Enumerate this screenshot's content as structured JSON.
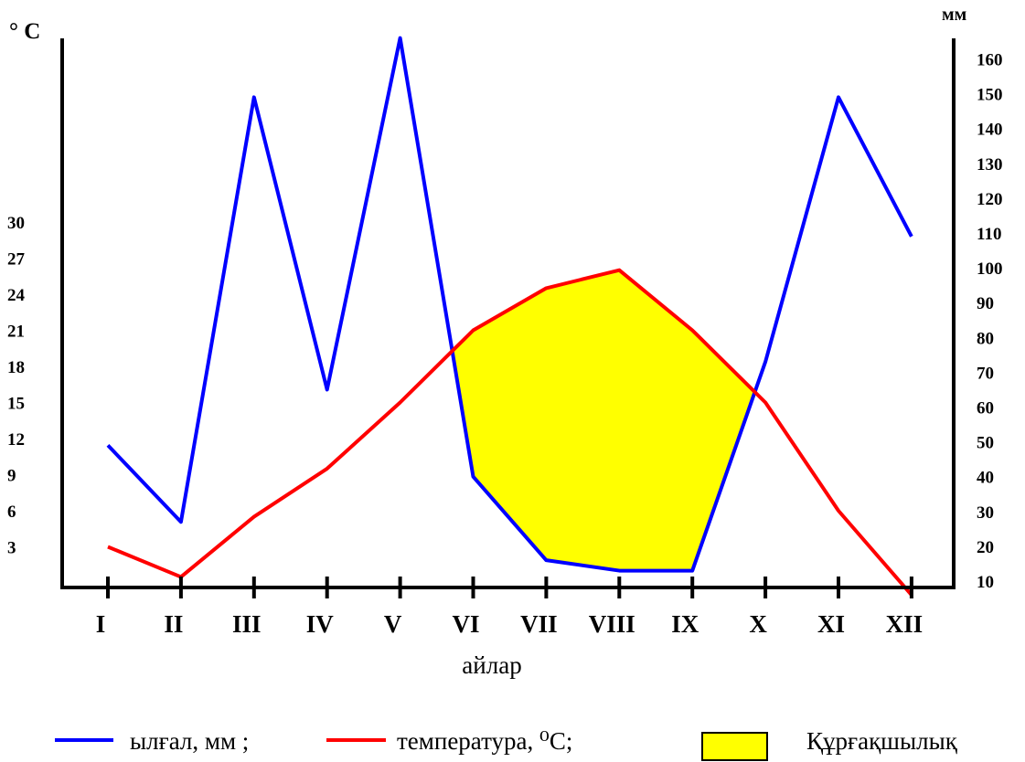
{
  "chart_data": {
    "type": "line",
    "categories": [
      "I",
      "II",
      "III",
      "IV",
      "V",
      "VI",
      "VII",
      "VIII",
      "IX",
      "X",
      "XI",
      "XII"
    ],
    "xlabel": "айлар",
    "left_axis": {
      "unit": "° C",
      "ticks": [
        3,
        6,
        9,
        12,
        15,
        18,
        21,
        24,
        27,
        30
      ]
    },
    "right_axis": {
      "unit": "мм",
      "ticks": [
        10,
        20,
        30,
        40,
        50,
        60,
        70,
        80,
        90,
        100,
        110,
        120,
        130,
        140,
        150,
        160
      ]
    },
    "series": [
      {
        "name": "ылғал, мм ;",
        "axis": "right",
        "color": "#0000ff",
        "values": [
          49,
          27,
          149,
          65,
          166,
          40,
          16,
          13,
          13,
          73,
          149,
          109
        ]
      },
      {
        "name": "температура, ⁰С;",
        "axis": "left",
        "color": "#ff0000",
        "values": [
          3,
          0.5,
          5.5,
          9.5,
          15,
          21,
          24.5,
          26,
          21,
          15,
          6,
          -1
        ]
      }
    ],
    "drought_fill": {
      "label": "Құрғақшылық",
      "color": "#ffff00",
      "edge_color": "#66ff66"
    }
  }
}
